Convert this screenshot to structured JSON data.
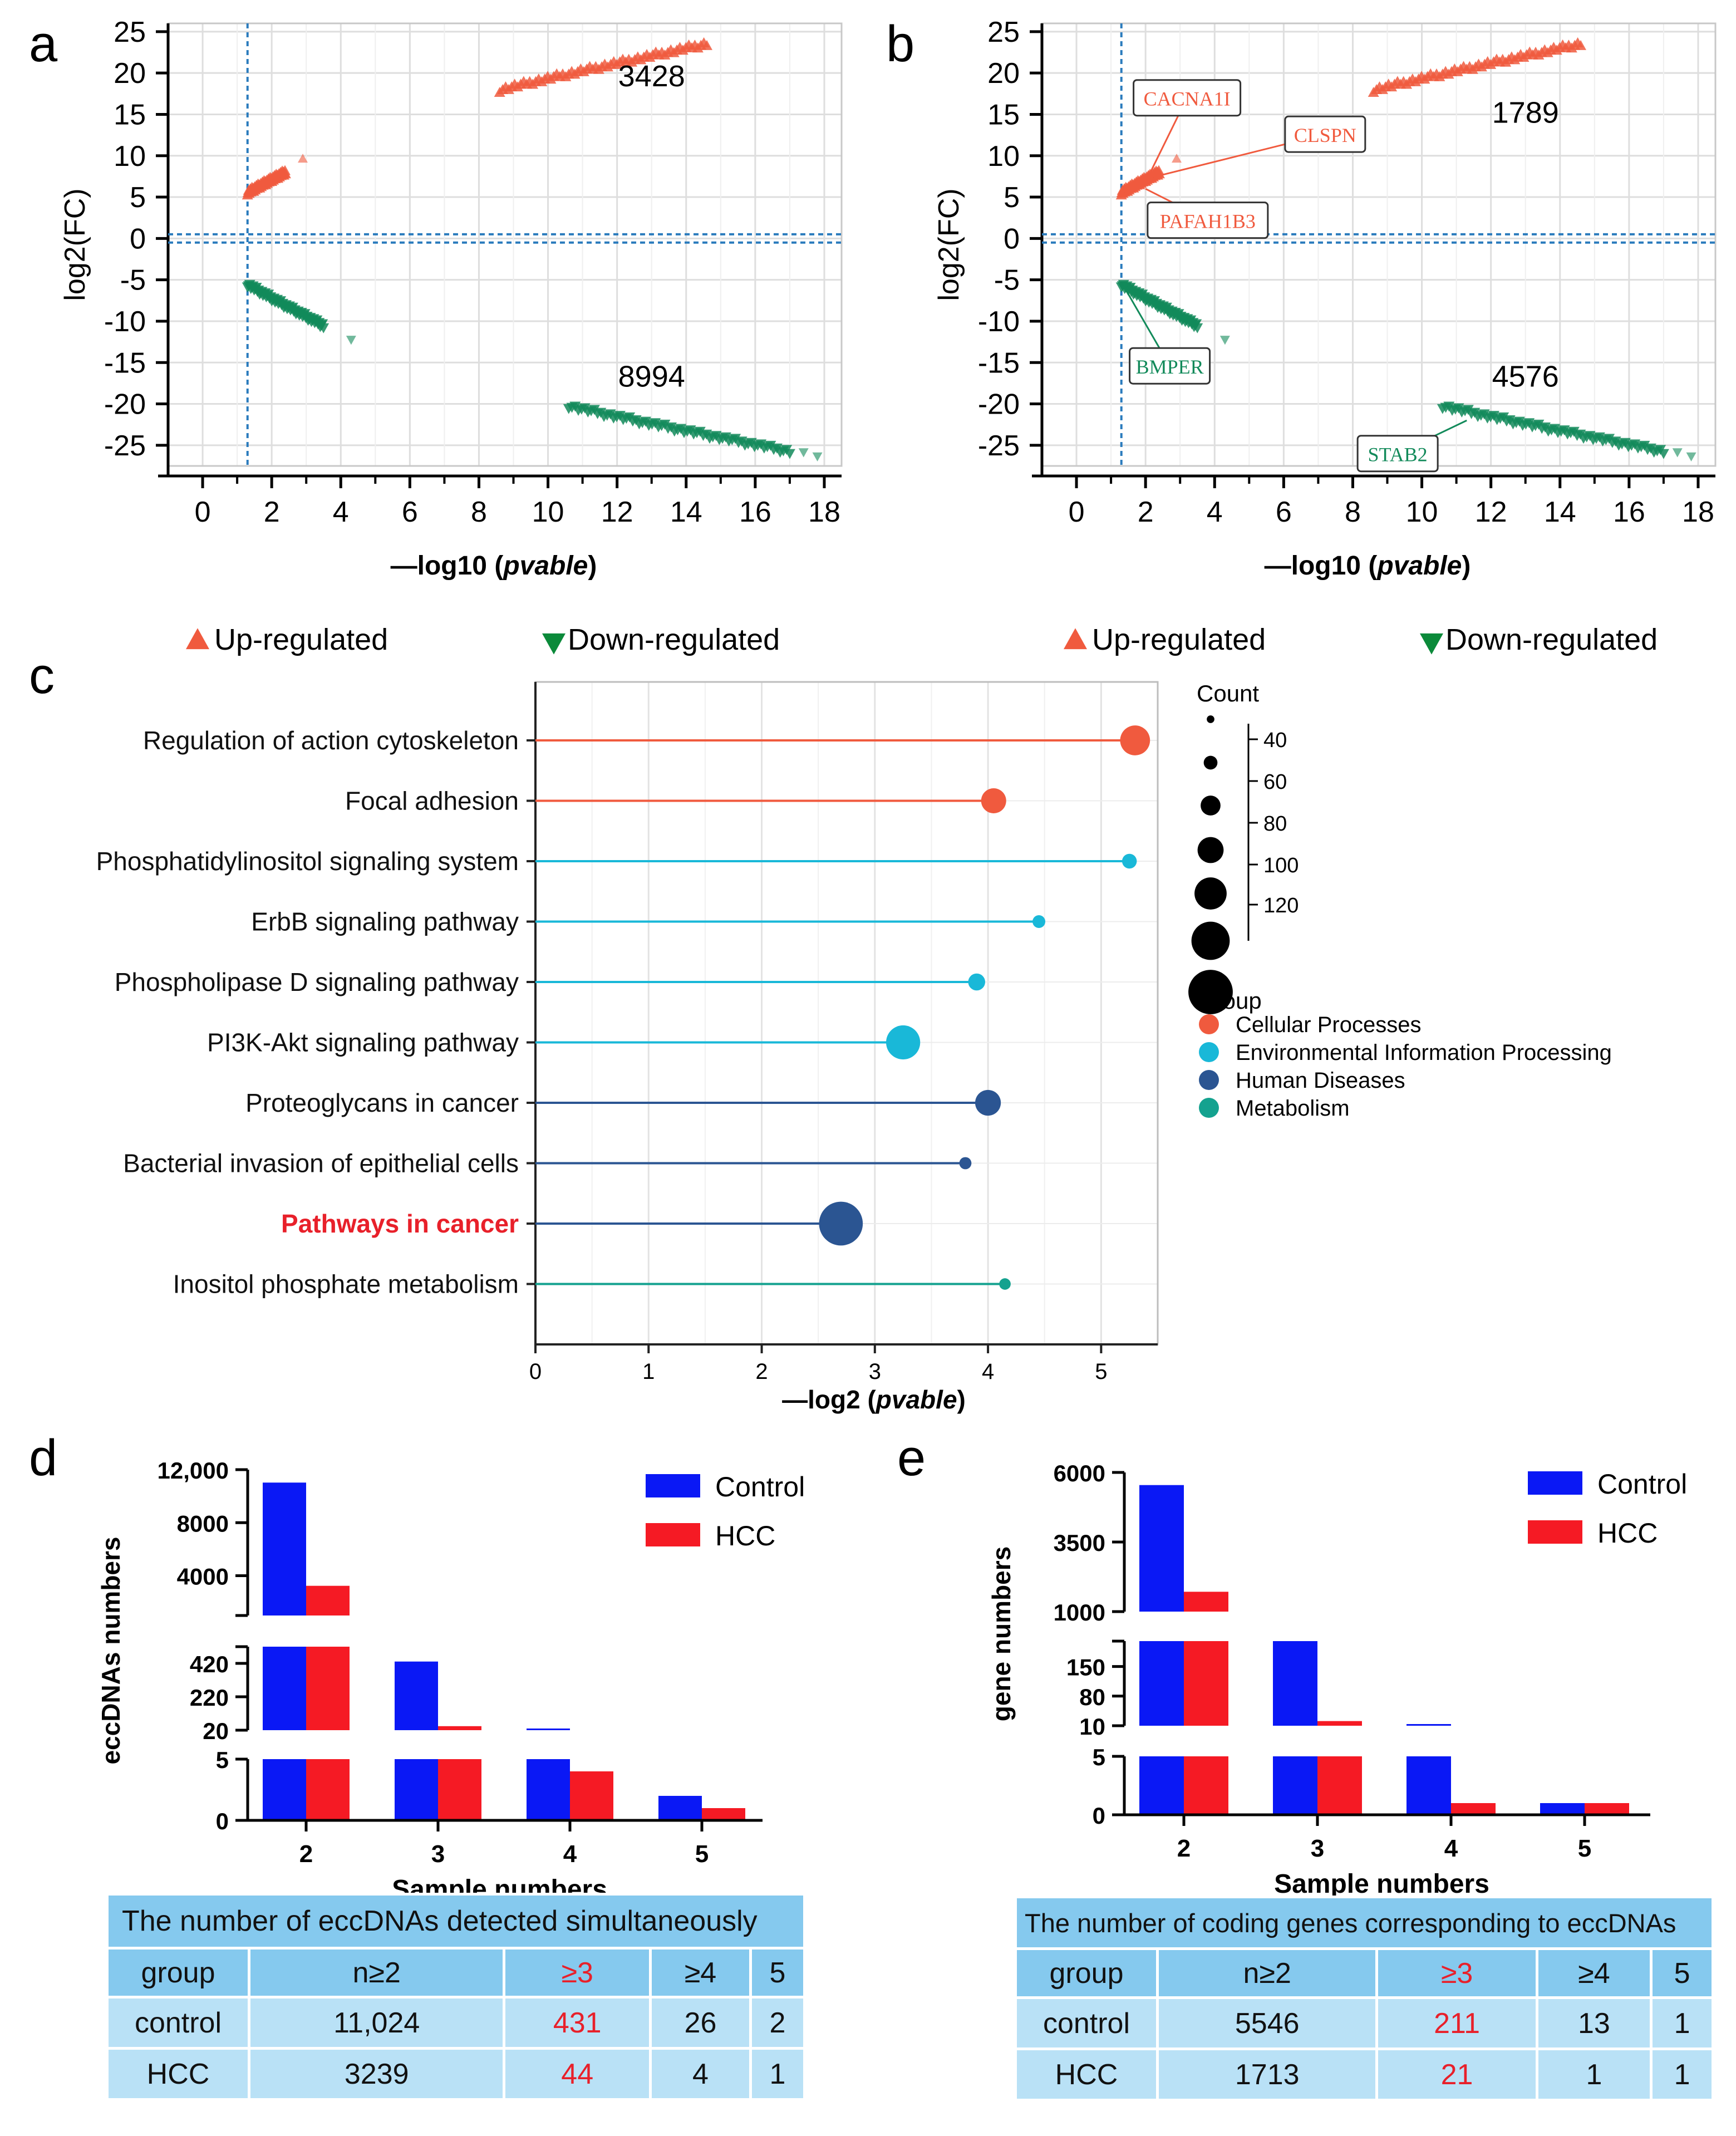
{
  "panel_letters": {
    "a": "a",
    "b": "b",
    "c": "c",
    "d": "d",
    "e": "e"
  },
  "colors": {
    "up": "#f05a3e",
    "down": "#128a5a",
    "threshold": "#2a7bbd",
    "cellular": "#f05a3e",
    "environmental": "#19b8d8",
    "human": "#2b5592",
    "metabolism": "#14a28f",
    "control": "#0a18f5",
    "hcc": "#f51a24",
    "table_header": "#85c9ee",
    "table_row": "#b9e1f6",
    "highlight": "#e8202a"
  },
  "chart_data": [
    {
      "id": "a",
      "type": "scatter",
      "xlabel_prefix": "—log10 (",
      "xlabel_italic": "pvable",
      "xlabel_suffix": ")",
      "ylabel": "log2(FC)",
      "xlim": [
        -1,
        18.5
      ],
      "ylim": [
        -27.5,
        26
      ],
      "xticks": [
        0,
        2,
        4,
        6,
        8,
        10,
        12,
        14,
        16,
        18
      ],
      "yticks": [
        25,
        20,
        15,
        10,
        5,
        0,
        -5,
        -10,
        -15,
        -20,
        -25
      ],
      "thresholds": {
        "x": 1.3,
        "y": [
          -0.5,
          0.5
        ]
      },
      "series": [
        {
          "name": "up-main",
          "marker": "up",
          "x_start": 8.6,
          "y_start": 17.9,
          "x_end": 14.6,
          "y_end": 23.5
        },
        {
          "name": "up-small",
          "marker": "up",
          "x_start": 1.3,
          "y_start": 5.5,
          "x_end": 2.4,
          "y_end": 8.0
        },
        {
          "name": "down-small",
          "marker": "down",
          "x_start": 1.3,
          "y_start": -5.5,
          "x_end": 3.5,
          "y_end": -10.5
        },
        {
          "name": "down-main",
          "marker": "down",
          "x_start": 10.6,
          "y_start": -20.2,
          "x_end": 17.0,
          "y_end": -25.7
        }
      ],
      "outliers": [
        {
          "marker": "up",
          "x": 2.9,
          "y": 9.6
        },
        {
          "marker": "down",
          "x": 4.3,
          "y": -12.2
        },
        {
          "marker": "down",
          "x": 17.8,
          "y": -26.3
        },
        {
          "marker": "down",
          "x": 17.4,
          "y": -25.8
        }
      ],
      "annotations": [
        {
          "text": "3428",
          "x": 13.0,
          "y": 18.4
        },
        {
          "text": "8994",
          "x": 13.0,
          "y": -17.9
        }
      ],
      "gene_labels": [],
      "legend": {
        "up": "Up-regulated",
        "down": "Down-regulated"
      }
    },
    {
      "id": "b",
      "type": "scatter",
      "xlabel_prefix": "—log10 (",
      "xlabel_italic": "pvable",
      "xlabel_suffix": ")",
      "ylabel": "log2(FC)",
      "xlim": [
        -1,
        18.5
      ],
      "ylim": [
        -27.5,
        26
      ],
      "xticks": [
        0,
        2,
        4,
        6,
        8,
        10,
        12,
        14,
        16,
        18
      ],
      "yticks": [
        25,
        20,
        15,
        10,
        5,
        0,
        -5,
        -10,
        -15,
        -20,
        -25
      ],
      "thresholds": {
        "x": 1.3,
        "y": [
          -0.5,
          0.5
        ]
      },
      "series": [
        {
          "name": "up-main",
          "marker": "up",
          "x_start": 8.6,
          "y_start": 17.9,
          "x_end": 14.6,
          "y_end": 23.5
        },
        {
          "name": "up-small",
          "marker": "up",
          "x_start": 1.3,
          "y_start": 5.5,
          "x_end": 2.4,
          "y_end": 8.0
        },
        {
          "name": "down-small",
          "marker": "down",
          "x_start": 1.3,
          "y_start": -5.5,
          "x_end": 3.5,
          "y_end": -10.5
        },
        {
          "name": "down-main",
          "marker": "down",
          "x_start": 10.6,
          "y_start": -20.2,
          "x_end": 17.0,
          "y_end": -25.7
        }
      ],
      "outliers": [
        {
          "marker": "up",
          "x": 2.9,
          "y": 9.6
        },
        {
          "marker": "down",
          "x": 4.3,
          "y": -12.2
        },
        {
          "marker": "down",
          "x": 17.8,
          "y": -26.3
        },
        {
          "marker": "down",
          "x": 17.4,
          "y": -25.8
        }
      ],
      "annotations": [
        {
          "text": "1789",
          "x": 13.0,
          "y": 14.0
        },
        {
          "text": "4576",
          "x": 13.0,
          "y": -17.9
        }
      ],
      "gene_labels": [
        {
          "text": "CACNA1I",
          "group": "up",
          "x": 3.2,
          "y": 17.0,
          "px": 2.0,
          "py": 6.8
        },
        {
          "text": "CLSPN",
          "group": "up",
          "x": 7.2,
          "y": 12.6,
          "px": 2.3,
          "py": 7.5
        },
        {
          "text": "PAFAH1B3",
          "group": "up",
          "x": 3.8,
          "y": 2.2,
          "px": 2.0,
          "py": 6.0
        },
        {
          "text": "BMPER",
          "group": "down",
          "x": 2.7,
          "y": -15.4,
          "px": 1.4,
          "py": -6.0
        },
        {
          "text": "STAB2",
          "group": "down",
          "x": 9.3,
          "y": -26.0,
          "px": 11.3,
          "py": -22.0
        }
      ],
      "legend": {
        "up": "Up-regulated",
        "down": "Down-regulated"
      }
    },
    {
      "id": "c",
      "type": "lollipop",
      "xlabel_prefix": "—log2 (",
      "xlabel_italic": "pvable",
      "xlabel_suffix": ")",
      "xlim": [
        0,
        5.5
      ],
      "xticks": [
        0,
        1,
        2,
        3,
        4,
        5
      ],
      "pathways": [
        {
          "name": "Regulation of action cytoskeleton",
          "value": 5.3,
          "count": 95,
          "group": "cellular",
          "highlight": false
        },
        {
          "name": "Focal adhesion",
          "value": 4.05,
          "count": 80,
          "group": "cellular",
          "highlight": false
        },
        {
          "name": "Phosphatidylinositol signaling system",
          "value": 5.25,
          "count": 48,
          "group": "environmental",
          "highlight": false
        },
        {
          "name": "ErbB signaling pathway",
          "value": 4.45,
          "count": 42,
          "group": "environmental",
          "highlight": false
        },
        {
          "name": "Phospholipase D signaling pathway",
          "value": 3.9,
          "count": 55,
          "group": "environmental",
          "highlight": false
        },
        {
          "name": "PI3K-Akt signaling pathway",
          "value": 3.25,
          "count": 108,
          "group": "environmental",
          "highlight": false
        },
        {
          "name": "Proteoglycans in cancer",
          "value": 4.0,
          "count": 82,
          "group": "human",
          "highlight": false
        },
        {
          "name": "Bacterial invasion of epithelial cells",
          "value": 3.8,
          "count": 40,
          "group": "human",
          "highlight": false
        },
        {
          "name": "Pathways in cancer",
          "value": 2.7,
          "count": 138,
          "group": "human",
          "highlight": true
        },
        {
          "name": "Inositol phosphate metabolism",
          "value": 4.15,
          "count": 38,
          "group": "metabolism",
          "highlight": false
        }
      ],
      "legend_count_title": "Count",
      "legend_count_values": [
        40,
        60,
        80,
        100,
        120
      ],
      "legend_group_title": "Group",
      "legend_groups": [
        {
          "key": "cellular",
          "label": "Cellular Processes"
        },
        {
          "key": "environmental",
          "label": "Environmental Information Processing"
        },
        {
          "key": "human",
          "label": "Human Diseases"
        },
        {
          "key": "metabolism",
          "label": "Metabolism"
        }
      ]
    },
    {
      "id": "d",
      "type": "bar",
      "xlabel": "Sample numbers",
      "ylabel": "eccDNAs numbers",
      "categories": [
        "2",
        "3",
        "4",
        "5"
      ],
      "series": [
        {
          "name": "Control",
          "values": [
            11024,
            431,
            26,
            2
          ]
        },
        {
          "name": "HCC",
          "values": [
            3239,
            44,
            4,
            1
          ]
        }
      ],
      "segments": [
        {
          "range": [
            0,
            5
          ],
          "ticks": [
            0,
            5
          ],
          "tick_labels": [
            "0",
            "5"
          ]
        },
        {
          "range": [
            20,
            520
          ],
          "ticks": [
            20,
            220,
            420
          ],
          "tick_labels": [
            "20",
            "220",
            "420"
          ]
        },
        {
          "range": [
            1000,
            12000
          ],
          "ticks": [
            4000,
            8000,
            12000
          ],
          "tick_labels": [
            "4000",
            "8000",
            "12,000"
          ]
        }
      ],
      "table": {
        "title": "The number of eccDNAs detected simultaneously",
        "header": [
          "group",
          "n≥2",
          "≥3",
          "≥4",
          "5"
        ],
        "rows": [
          [
            "control",
            "11,024",
            "431",
            "26",
            "2"
          ],
          [
            "HCC",
            "3239",
            "44",
            "4",
            "1"
          ]
        ]
      }
    },
    {
      "id": "e",
      "type": "bar",
      "xlabel": "Sample numbers",
      "ylabel": "gene numbers",
      "categories": [
        "2",
        "3",
        "4",
        "5"
      ],
      "series": [
        {
          "name": "Control",
          "values": [
            5546,
            211,
            13,
            1
          ]
        },
        {
          "name": "HCC",
          "values": [
            1713,
            21,
            1,
            1
          ]
        }
      ],
      "segments": [
        {
          "range": [
            0,
            5
          ],
          "ticks": [
            0,
            5
          ],
          "tick_labels": [
            "0",
            "5"
          ]
        },
        {
          "range": [
            10,
            210
          ],
          "ticks": [
            10,
            80,
            150
          ],
          "tick_labels": [
            "10",
            "80",
            "150"
          ]
        },
        {
          "range": [
            1000,
            6000
          ],
          "ticks": [
            1000,
            3500,
            6000
          ],
          "tick_labels": [
            "1000",
            "3500",
            "6000"
          ]
        }
      ],
      "table": {
        "title": "The number of coding genes corresponding to eccDNAs",
        "header": [
          "group",
          "n≥2",
          "≥3",
          "≥4",
          "5"
        ],
        "rows": [
          [
            "control",
            "5546",
            "211",
            "13",
            "1"
          ],
          [
            "HCC",
            "1713",
            "21",
            "1",
            "1"
          ]
        ]
      }
    }
  ]
}
